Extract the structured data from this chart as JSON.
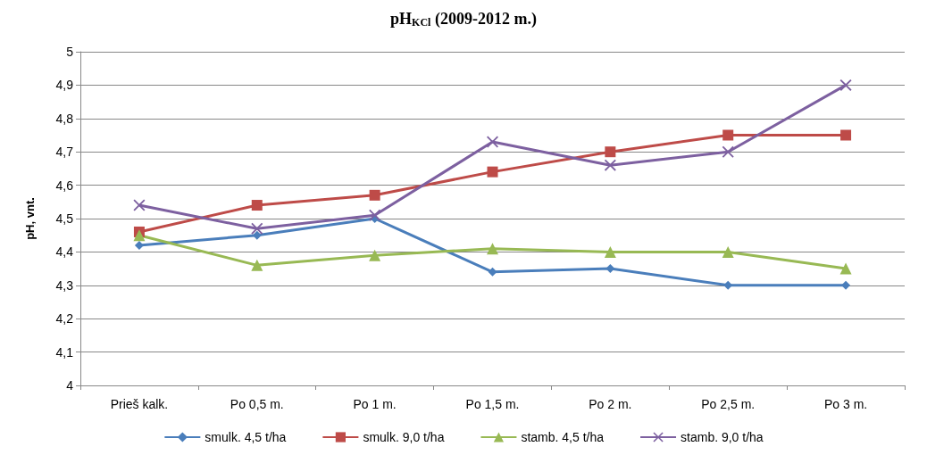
{
  "chart_data": {
    "type": "line",
    "title": "pH$_{KCl}$ (2009-2012 m.)",
    "ylabel": "pH, vnt.",
    "categories": [
      "Prieš kalk.",
      "Po 0,5 m.",
      "Po 1 m.",
      "Po 1,5 m.",
      "Po 2 m.",
      "Po 2,5 m.",
      "Po 3 m."
    ],
    "series": [
      {
        "name": "smulk. 4,5 t/ha",
        "color": "#4a7ebb",
        "marker": "diamond",
        "values": [
          4.42,
          4.45,
          4.5,
          4.34,
          4.35,
          4.3,
          4.3
        ]
      },
      {
        "name": "smulk. 9,0 t/ha",
        "color": "#be4b48",
        "marker": "square",
        "values": [
          4.46,
          4.54,
          4.57,
          4.64,
          4.7,
          4.75,
          4.75
        ]
      },
      {
        "name": "stamb. 4,5 t/ha",
        "color": "#98b954",
        "marker": "triangle",
        "values": [
          4.45,
          4.36,
          4.39,
          4.41,
          4.4,
          4.4,
          4.35
        ]
      },
      {
        "name": "stamb. 9,0 t/ha",
        "color": "#7d60a0",
        "marker": "cross",
        "values": [
          4.54,
          4.47,
          4.51,
          4.73,
          4.66,
          4.7,
          4.9
        ]
      }
    ],
    "ylim": [
      4,
      5
    ],
    "yticks": [
      4,
      {
        "value": 4.1,
        "label": "4,1"
      },
      {
        "value": 4.2,
        "label": "4,2"
      },
      {
        "value": 4.3,
        "label": "4,3"
      },
      {
        "value": 4.4,
        "label": "4,4"
      },
      {
        "value": 4.5,
        "label": "4,5"
      },
      {
        "value": 4.6,
        "label": "4,6"
      },
      {
        "value": 4.7,
        "label": "4,7"
      },
      {
        "value": 4.8,
        "label": "4,8"
      },
      {
        "value": 4.9,
        "label": "4,9"
      },
      5
    ],
    "grid": "y",
    "legend": "bottom",
    "line_style": "solid"
  }
}
